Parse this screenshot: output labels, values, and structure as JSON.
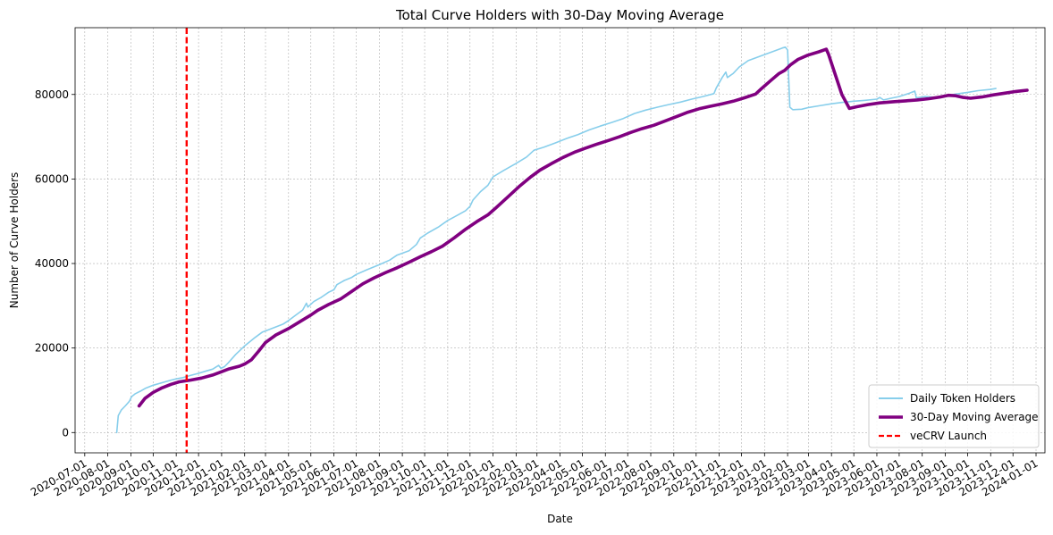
{
  "chart_data": {
    "type": "line",
    "title": "Total Curve Holders with 30-Day Moving Average",
    "xlabel": "Date",
    "ylabel": "Number of Curve Holders",
    "xlim": [
      "2020-06-18",
      "2024-01-13"
    ],
    "ylim": [
      -4800,
      95800
    ],
    "grid": true,
    "legend_position": "lower-right",
    "x_ticks": [
      "2020-07-01",
      "2020-08-01",
      "2020-09-01",
      "2020-10-01",
      "2020-11-01",
      "2020-12-01",
      "2021-01-01",
      "2021-02-01",
      "2021-03-01",
      "2021-04-01",
      "2021-05-01",
      "2021-06-01",
      "2021-07-01",
      "2021-08-01",
      "2021-09-01",
      "2021-10-01",
      "2021-11-01",
      "2021-12-01",
      "2022-01-01",
      "2022-02-01",
      "2022-03-01",
      "2022-04-01",
      "2022-05-01",
      "2022-06-01",
      "2022-07-01",
      "2022-08-01",
      "2022-09-01",
      "2022-10-01",
      "2022-11-01",
      "2022-12-01",
      "2023-01-01",
      "2023-02-01",
      "2023-03-01",
      "2023-04-01",
      "2023-05-01",
      "2023-06-01",
      "2023-07-01",
      "2023-08-01",
      "2023-09-01",
      "2023-10-01",
      "2023-11-01",
      "2023-12-01",
      "2024-01-01"
    ],
    "y_ticks": [
      0,
      20000,
      40000,
      60000,
      80000
    ],
    "series": [
      {
        "name": "Daily Token Holders",
        "color": "#87ceeb",
        "style": "solid",
        "points": [
          [
            "2020-08-13",
            0
          ],
          [
            "2020-08-15",
            4000
          ],
          [
            "2020-08-19",
            5300
          ],
          [
            "2020-08-25",
            6400
          ],
          [
            "2020-08-30",
            7400
          ],
          [
            "2020-09-02",
            8500
          ],
          [
            "2020-09-07",
            9200
          ],
          [
            "2020-09-14",
            9800
          ],
          [
            "2020-09-21",
            10500
          ],
          [
            "2020-10-01",
            11200
          ],
          [
            "2020-10-15",
            11900
          ],
          [
            "2020-10-25",
            12400
          ],
          [
            "2020-11-01",
            12700
          ],
          [
            "2020-11-10",
            13000
          ],
          [
            "2020-11-20",
            13500
          ],
          [
            "2020-12-01",
            14000
          ],
          [
            "2020-12-10",
            14500
          ],
          [
            "2020-12-20",
            15000
          ],
          [
            "2020-12-28",
            15900
          ],
          [
            "2020-12-31",
            15200
          ],
          [
            "2021-01-05",
            15600
          ],
          [
            "2021-01-10",
            16500
          ],
          [
            "2021-01-20",
            18500
          ],
          [
            "2021-02-01",
            20500
          ],
          [
            "2021-02-15",
            22500
          ],
          [
            "2021-02-25",
            23800
          ],
          [
            "2021-03-05",
            24300
          ],
          [
            "2021-03-15",
            25000
          ],
          [
            "2021-03-25",
            25700
          ],
          [
            "2021-04-01",
            26500
          ],
          [
            "2021-04-10",
            27700
          ],
          [
            "2021-04-20",
            29000
          ],
          [
            "2021-04-25",
            30600
          ],
          [
            "2021-04-27",
            29700
          ],
          [
            "2021-05-05",
            31000
          ],
          [
            "2021-05-15",
            32000
          ],
          [
            "2021-05-25",
            33200
          ],
          [
            "2021-06-01",
            33800
          ],
          [
            "2021-06-05",
            35000
          ],
          [
            "2021-06-15",
            36000
          ],
          [
            "2021-06-25",
            36700
          ],
          [
            "2021-07-01",
            37400
          ],
          [
            "2021-07-15",
            38500
          ],
          [
            "2021-08-01",
            39700
          ],
          [
            "2021-08-15",
            40800
          ],
          [
            "2021-08-25",
            42000
          ],
          [
            "2021-09-10",
            43000
          ],
          [
            "2021-09-20",
            44500
          ],
          [
            "2021-09-25",
            46000
          ],
          [
            "2021-10-05",
            47200
          ],
          [
            "2021-10-20",
            48700
          ],
          [
            "2021-11-01",
            50200
          ],
          [
            "2021-11-15",
            51500
          ],
          [
            "2021-11-25",
            52500
          ],
          [
            "2021-12-01",
            53500
          ],
          [
            "2021-12-05",
            55000
          ],
          [
            "2021-12-15",
            57000
          ],
          [
            "2021-12-25",
            58500
          ],
          [
            "2022-01-01",
            60500
          ],
          [
            "2022-01-15",
            62000
          ],
          [
            "2022-02-01",
            63700
          ],
          [
            "2022-02-15",
            65200
          ],
          [
            "2022-02-25",
            66800
          ],
          [
            "2022-03-10",
            67500
          ],
          [
            "2022-03-25",
            68500
          ],
          [
            "2022-04-10",
            69600
          ],
          [
            "2022-04-25",
            70500
          ],
          [
            "2022-05-10",
            71600
          ],
          [
            "2022-05-25",
            72500
          ],
          [
            "2022-06-10",
            73400
          ],
          [
            "2022-06-25",
            74300
          ],
          [
            "2022-07-10",
            75500
          ],
          [
            "2022-07-25",
            76300
          ],
          [
            "2022-08-10",
            77000
          ],
          [
            "2022-08-25",
            77600
          ],
          [
            "2022-09-10",
            78200
          ],
          [
            "2022-09-25",
            78900
          ],
          [
            "2022-10-10",
            79500
          ],
          [
            "2022-10-25",
            80200
          ],
          [
            "2022-10-28",
            81500
          ],
          [
            "2022-11-05",
            84000
          ],
          [
            "2022-11-10",
            85300
          ],
          [
            "2022-11-12",
            84000
          ],
          [
            "2022-11-20",
            85000
          ],
          [
            "2022-11-28",
            86500
          ],
          [
            "2022-12-10",
            88000
          ],
          [
            "2022-12-25",
            89000
          ],
          [
            "2023-01-10",
            90000
          ],
          [
            "2023-01-25",
            91000
          ],
          [
            "2023-01-29",
            91200
          ],
          [
            "2023-02-01",
            90500
          ],
          [
            "2023-02-04",
            77000
          ],
          [
            "2023-02-08",
            76400
          ],
          [
            "2023-02-20",
            76500
          ],
          [
            "2023-03-01",
            76900
          ],
          [
            "2023-03-15",
            77300
          ],
          [
            "2023-04-01",
            77800
          ],
          [
            "2023-04-15",
            78100
          ],
          [
            "2023-05-01",
            78400
          ],
          [
            "2023-05-15",
            78600
          ],
          [
            "2023-06-01",
            78900
          ],
          [
            "2023-06-05",
            79300
          ],
          [
            "2023-06-10",
            78700
          ],
          [
            "2023-06-20",
            79100
          ],
          [
            "2023-07-01",
            79500
          ],
          [
            "2023-07-15",
            80300
          ],
          [
            "2023-07-22",
            80800
          ],
          [
            "2023-07-24",
            79200
          ],
          [
            "2023-08-05",
            79500
          ],
          [
            "2023-08-20",
            79300
          ],
          [
            "2023-09-01",
            79600
          ],
          [
            "2023-09-15",
            80100
          ],
          [
            "2023-10-01",
            80500
          ],
          [
            "2023-10-15",
            80900
          ],
          [
            "2023-11-01",
            81200
          ],
          [
            "2023-11-08",
            81400
          ]
        ]
      },
      {
        "name": "30-Day Moving Average",
        "color": "#800080",
        "style": "solid",
        "points": [
          [
            "2020-09-12",
            6300
          ],
          [
            "2020-09-20",
            8100
          ],
          [
            "2020-10-01",
            9500
          ],
          [
            "2020-10-12",
            10500
          ],
          [
            "2020-10-25",
            11400
          ],
          [
            "2020-11-05",
            12000
          ],
          [
            "2020-11-20",
            12400
          ],
          [
            "2020-12-05",
            12900
          ],
          [
            "2020-12-20",
            13600
          ],
          [
            "2021-01-01",
            14400
          ],
          [
            "2021-01-10",
            15000
          ],
          [
            "2021-01-25",
            15700
          ],
          [
            "2021-02-01",
            16200
          ],
          [
            "2021-02-10",
            17200
          ],
          [
            "2021-02-20",
            19300
          ],
          [
            "2021-03-01",
            21300
          ],
          [
            "2021-03-15",
            23100
          ],
          [
            "2021-04-01",
            24600
          ],
          [
            "2021-04-15",
            26100
          ],
          [
            "2021-05-01",
            27800
          ],
          [
            "2021-05-10",
            28900
          ],
          [
            "2021-05-25",
            30300
          ],
          [
            "2021-06-10",
            31600
          ],
          [
            "2021-06-25",
            33400
          ],
          [
            "2021-07-10",
            35200
          ],
          [
            "2021-07-25",
            36600
          ],
          [
            "2021-08-10",
            37900
          ],
          [
            "2021-08-25",
            39000
          ],
          [
            "2021-09-10",
            40300
          ],
          [
            "2021-09-25",
            41600
          ],
          [
            "2021-10-10",
            42800
          ],
          [
            "2021-10-25",
            44100
          ],
          [
            "2021-11-10",
            46100
          ],
          [
            "2021-11-25",
            48100
          ],
          [
            "2021-12-10",
            49900
          ],
          [
            "2021-12-25",
            51500
          ],
          [
            "2022-01-05",
            53200
          ],
          [
            "2022-01-20",
            55600
          ],
          [
            "2022-02-05",
            58200
          ],
          [
            "2022-02-20",
            60400
          ],
          [
            "2022-03-05",
            62100
          ],
          [
            "2022-03-20",
            63600
          ],
          [
            "2022-04-05",
            65100
          ],
          [
            "2022-04-20",
            66300
          ],
          [
            "2022-05-05",
            67300
          ],
          [
            "2022-05-20",
            68200
          ],
          [
            "2022-06-05",
            69100
          ],
          [
            "2022-06-20",
            70000
          ],
          [
            "2022-07-05",
            71000
          ],
          [
            "2022-07-20",
            71900
          ],
          [
            "2022-08-05",
            72700
          ],
          [
            "2022-08-20",
            73700
          ],
          [
            "2022-09-05",
            74800
          ],
          [
            "2022-09-20",
            75800
          ],
          [
            "2022-10-05",
            76600
          ],
          [
            "2022-10-20",
            77200
          ],
          [
            "2022-11-05",
            77800
          ],
          [
            "2022-11-20",
            78400
          ],
          [
            "2022-12-05",
            79200
          ],
          [
            "2022-12-20",
            80100
          ],
          [
            "2022-12-28",
            81400
          ],
          [
            "2023-01-10",
            83400
          ],
          [
            "2023-01-20",
            84900
          ],
          [
            "2023-01-28",
            85700
          ],
          [
            "2023-02-05",
            87000
          ],
          [
            "2023-02-15",
            88300
          ],
          [
            "2023-02-28",
            89300
          ],
          [
            "2023-03-15",
            90100
          ],
          [
            "2023-03-25",
            90700
          ],
          [
            "2023-03-28",
            89500
          ],
          [
            "2023-04-15",
            80000
          ],
          [
            "2023-04-25",
            76700
          ],
          [
            "2023-05-05",
            77100
          ],
          [
            "2023-05-20",
            77600
          ],
          [
            "2023-06-05",
            78000
          ],
          [
            "2023-06-25",
            78300
          ],
          [
            "2023-07-10",
            78500
          ],
          [
            "2023-07-25",
            78700
          ],
          [
            "2023-08-10",
            79000
          ],
          [
            "2023-08-25",
            79400
          ],
          [
            "2023-09-05",
            79800
          ],
          [
            "2023-09-15",
            79700
          ],
          [
            "2023-09-25",
            79300
          ],
          [
            "2023-10-05",
            79100
          ],
          [
            "2023-10-20",
            79400
          ],
          [
            "2023-11-05",
            79900
          ],
          [
            "2023-11-20",
            80300
          ],
          [
            "2023-12-05",
            80700
          ],
          [
            "2023-12-20",
            81000
          ]
        ]
      }
    ],
    "vlines": [
      {
        "name": "veCRV Launch",
        "x": "2020-11-15",
        "color": "#ff0000",
        "style": "dashed"
      }
    ]
  }
}
